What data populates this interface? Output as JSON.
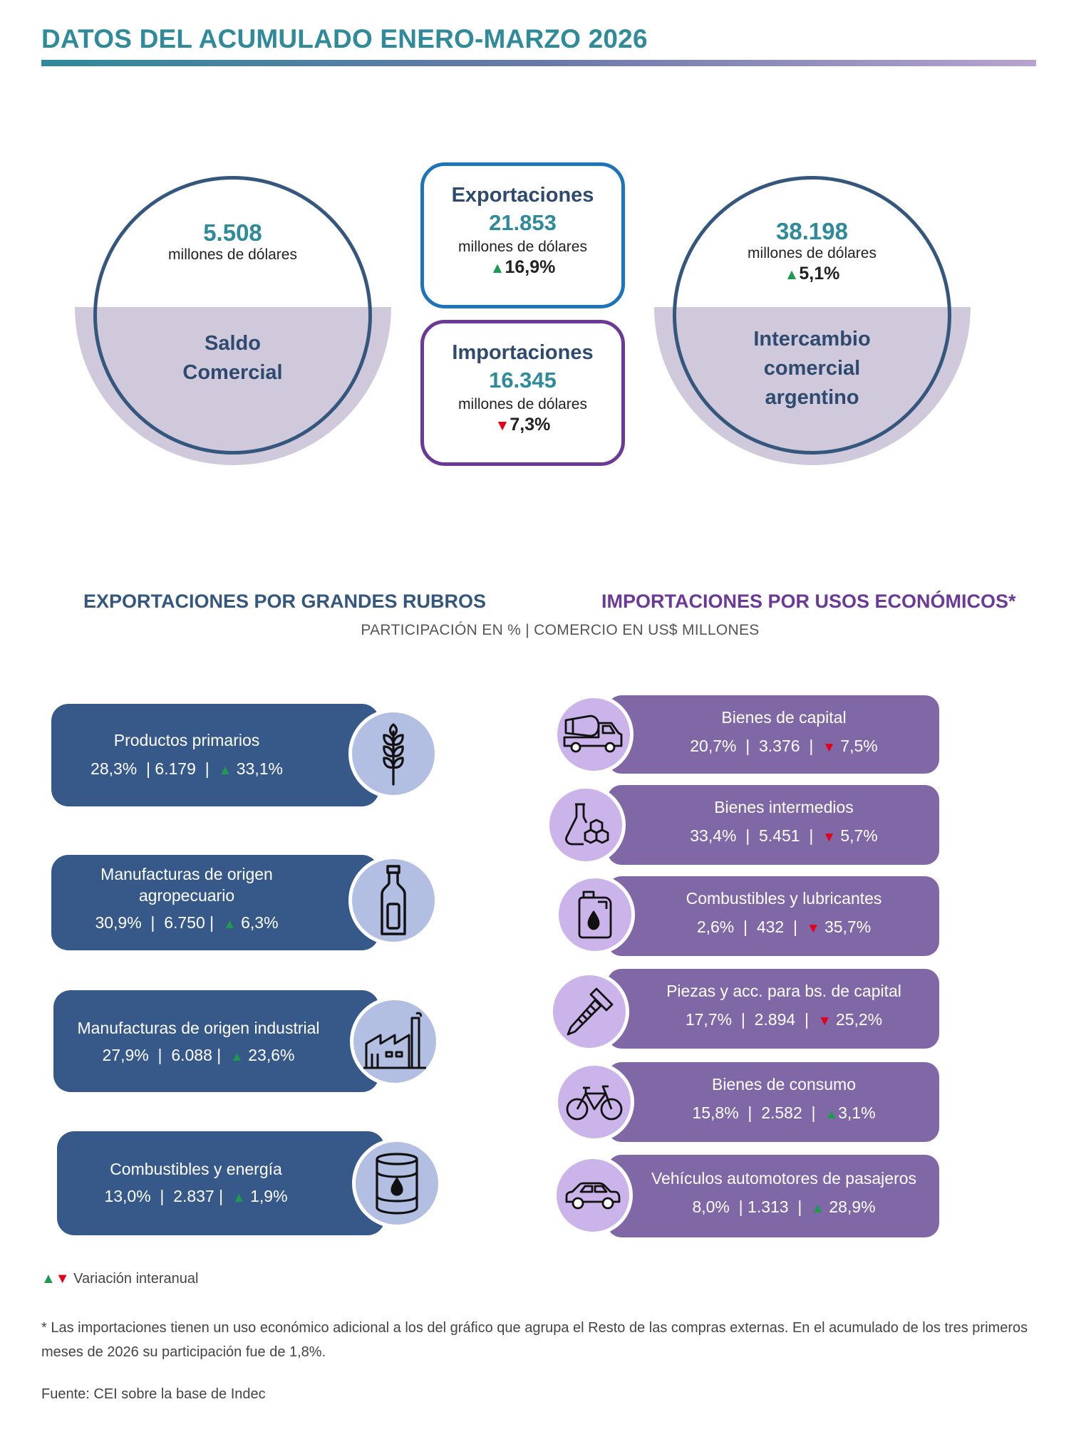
{
  "header": {
    "title": "DATOS DEL ACUMULADO ENERO-MARZO 2026"
  },
  "colors": {
    "teal": "#2f8a99",
    "navy": "#35577d",
    "purple": "#6b3a96",
    "up": "#1e9a4f",
    "down": "#e5001a",
    "pill_left": "#36598a",
    "pill_right": "#8068a6"
  },
  "saldo": {
    "value": "5.508",
    "unit": "millones de dólares",
    "label_line1": "Saldo",
    "label_line2": "Comercial"
  },
  "exportaciones": {
    "title": "Exportaciones",
    "value": "21.853",
    "unit": "millones de dólares",
    "arrow": "▲",
    "change": "16,9%"
  },
  "importaciones": {
    "title": "Importaciones",
    "value": "16.345",
    "unit": "millones de dólares",
    "arrow": "▼",
    "change": "7,3%"
  },
  "intercambio": {
    "value": "38.198",
    "unit": "millones de dólares",
    "arrow": "▲",
    "change": "5,1%",
    "label_line1": "Intercambio",
    "label_line2": "comercial",
    "label_line3": "argentino"
  },
  "sections": {
    "exports_title": "EXPORTACIONES POR GRANDES RUBROS",
    "imports_title": "IMPORTACIONES POR USOS ECONÓMICOS*",
    "subtitle": "PARTICIPACIÓN EN % | COMERCIO EN US$ MILLONES"
  },
  "exports": [
    {
      "name": "Productos primarios",
      "share": "28,3%",
      "value": "6.179",
      "arrow": "▲",
      "change": "33,1%",
      "icon": "wheat-icon"
    },
    {
      "name_line1": "Manufacturas de origen",
      "name_line2": "agropecuario",
      "share": "30,9%",
      "value": "6.750",
      "arrow": "▲",
      "change": "6,3%",
      "icon": "bottle-icon"
    },
    {
      "name": "Manufacturas de origen industrial",
      "share": "27,9%",
      "value": "6.088",
      "arrow": "▲",
      "change": "23,6%",
      "icon": "factory-icon"
    },
    {
      "name": "Combustibles y energía",
      "share": "13,0%",
      "value": "2.837",
      "arrow": "▲",
      "change": "1,9%",
      "icon": "oil-barrel-icon"
    }
  ],
  "imports": [
    {
      "name": "Bienes de capital",
      "share": "20,7%",
      "value": "3.376",
      "arrow": "▼",
      "change": "7,5%",
      "icon": "cement-truck-icon"
    },
    {
      "name": "Bienes intermedios",
      "share": "33,4%",
      "value": "5.451",
      "arrow": "▼",
      "change": "5,7%",
      "icon": "chemistry-flask-icon"
    },
    {
      "name": "Combustibles y lubricantes",
      "share": "2,6%",
      "value": "432",
      "arrow": "▼",
      "change": "35,7%",
      "icon": "fuel-can-icon"
    },
    {
      "name": "Piezas y acc. para bs. de capital",
      "share": "17,7%",
      "value": "2.894",
      "arrow": "▼",
      "change": "25,2%",
      "icon": "screw-icon"
    },
    {
      "name": "Bienes de consumo",
      "share": "15,8%",
      "value": "2.582",
      "arrow": "▲",
      "change": "3,1%",
      "icon": "bicycle-icon"
    },
    {
      "name": "Vehículos automotores de pasajeros",
      "share": "8,0%",
      "value": "1.313",
      "arrow": "▲",
      "change": "28,9%",
      "icon": "car-icon"
    }
  ],
  "footer": {
    "legend_up": "▲",
    "legend_down": "▼",
    "legend_text": "Variación interanual",
    "note": "* Las importaciones tienen un uso económico adicional a los del gráfico que agrupa el Resto de las compras externas. En el acumulado de los tres primeros meses de 2026 su participación fue de 1,8%.",
    "source": "Fuente: CEI sobre la base de Indec"
  }
}
